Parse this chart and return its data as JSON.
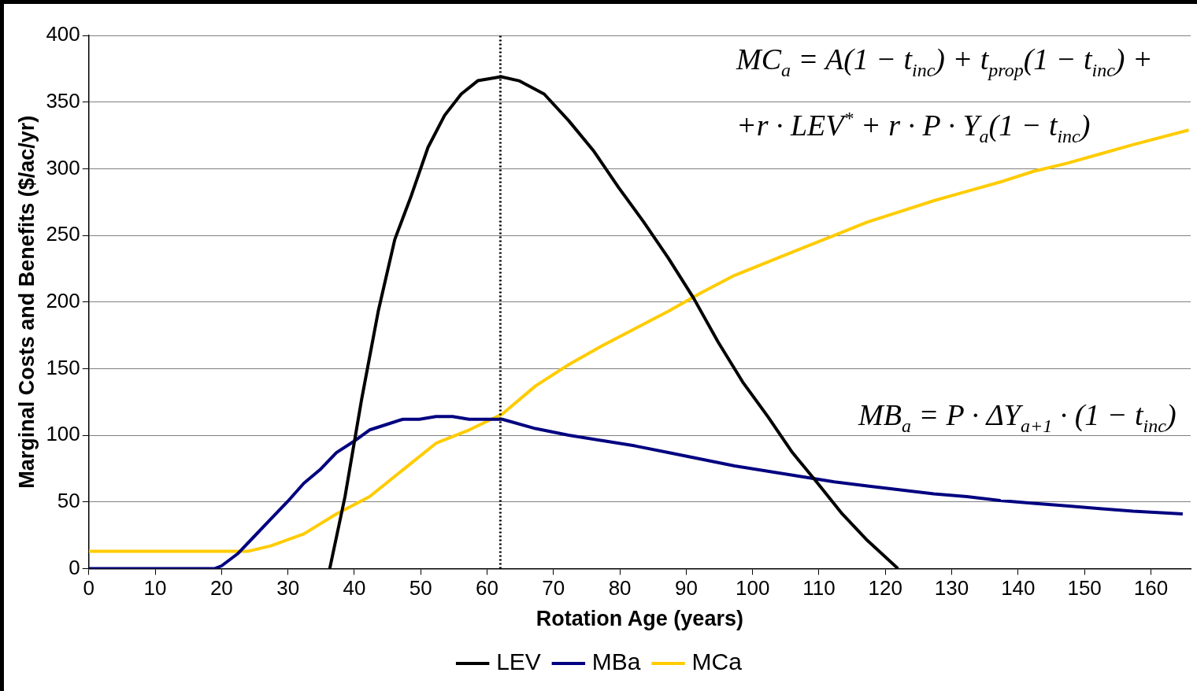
{
  "chart_data": {
    "type": "line",
    "xlabel": "Rotation Age (years)",
    "ylabel": "Marginal Costs and Benefits ($/ac/yr)",
    "xlim": [
      0,
      166
    ],
    "xticks": [
      0,
      10,
      20,
      30,
      40,
      50,
      60,
      70,
      80,
      90,
      100,
      110,
      120,
      130,
      140,
      150,
      160
    ],
    "ylim": [
      0,
      400
    ],
    "yticks": [
      0,
      50,
      100,
      150,
      200,
      250,
      300,
      350,
      400
    ],
    "grid": "y",
    "legend": "bottom",
    "marker": "none",
    "line_style": "solid",
    "series": [
      {
        "name": "LEV",
        "color": "#000000",
        "x": [
          36.3,
          38.6,
          41.1,
          43.6,
          46.1,
          48.6,
          51.1,
          53.6,
          56.1,
          58.6,
          62.1,
          64.8,
          68.6,
          72.3,
          76.1,
          79.8,
          83.6,
          87.3,
          91.1,
          94.8,
          98.5,
          102.3,
          106,
          109.8,
          113.5,
          117.3,
          121.9
        ],
        "values": [
          0,
          54,
          127,
          193,
          247,
          280,
          316,
          340,
          356,
          366,
          369,
          366,
          356,
          336,
          313,
          286,
          260,
          233,
          203,
          170,
          140,
          114,
          87,
          64,
          41,
          21,
          0
        ]
      },
      {
        "name": "MBa",
        "color": "#000080",
        "x": [
          0,
          19,
          20,
          22.4,
          24.9,
          27.4,
          29.9,
          32.4,
          34.8,
          37.3,
          39.8,
          42.3,
          44.8,
          47.3,
          49.8,
          52.3,
          54.8,
          57.3,
          62.3,
          67.3,
          72.3,
          77.3,
          82.3,
          87.3,
          92.3,
          97.3,
          102.3,
          107.3,
          112.3,
          117.3,
          122.3,
          127.3,
          132.3,
          137.3,
          142.3,
          147.3,
          152.3,
          157.3,
          164.8
        ],
        "values": [
          0,
          0,
          2,
          11,
          24,
          37,
          50,
          64,
          74,
          87,
          95,
          104,
          108,
          112,
          112,
          114,
          114,
          112,
          112,
          105,
          100,
          96,
          92,
          87,
          82,
          77,
          73,
          69,
          65,
          62,
          59,
          56,
          54,
          51,
          49,
          47,
          45,
          43,
          41
        ]
      },
      {
        "name": "MCa",
        "color": "#ffcc00",
        "x": [
          0,
          24,
          27.4,
          32.4,
          37.3,
          42.3,
          47.3,
          52.3,
          57.3,
          62.3,
          67.3,
          72.3,
          77.3,
          82.3,
          87.3,
          92.3,
          97.3,
          102.3,
          107.3,
          112.3,
          117.3,
          122.3,
          127.3,
          132.3,
          137.3,
          142.3,
          147.3,
          152.3,
          157.3,
          165.7
        ],
        "values": [
          13,
          13,
          17,
          26,
          41,
          54,
          74,
          94,
          104,
          116,
          137,
          153,
          167,
          180,
          193,
          207,
          220,
          230,
          240,
          250,
          260,
          268,
          276,
          283,
          290,
          298,
          304,
          311,
          318,
          329
        ]
      }
    ],
    "ref_lines": [
      {
        "axis": "x",
        "value": 62,
        "line_style": "dotted",
        "color": "#000000"
      }
    ],
    "annotations": [
      "MC$_{a}$ = A(1 − t$_{inc}$) + t$_{prop}$(1 − t$_{inc}$) +",
      "+r · LEV$^{*}$ + r · P · Y$_{a}$(1 − t$_{inc}$)",
      "MB$_{a}$ = P · ΔY$_{a+1}$ · (1 − t$_{inc}$)"
    ]
  }
}
